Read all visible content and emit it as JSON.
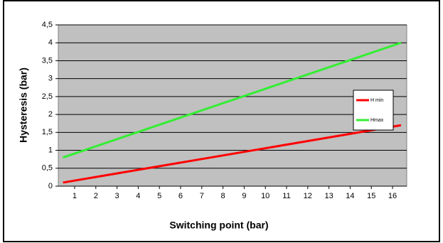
{
  "chart_data": {
    "type": "line",
    "y_label": "Hysteresis (bar)",
    "x_label": "Switching point  (bar)",
    "x": [
      0.45,
      16.4
    ],
    "series": [
      {
        "name": "H min",
        "color": "#ff0000",
        "values": [
          0.1,
          1.7
        ]
      },
      {
        "name": "Hmax",
        "color": "#33ee33",
        "values": [
          0.8,
          4.0
        ]
      }
    ],
    "xlim": [
      0.23,
      16.67
    ],
    "xticks": [
      1,
      2,
      3,
      4,
      5,
      6,
      7,
      8,
      9,
      10,
      11,
      12,
      13,
      14,
      15,
      16
    ],
    "ylim": [
      0,
      4.5
    ],
    "yticks": [
      0,
      {
        "value": 0.5,
        "label": "0,5"
      },
      1,
      {
        "value": 1.5,
        "label": "1,5"
      },
      2,
      {
        "value": 2.5,
        "label": "2,5"
      },
      3,
      {
        "value": 3.5,
        "label": "3,5"
      },
      4,
      {
        "value": 4.5,
        "label": "4,5"
      }
    ],
    "grid": true,
    "legend": "right"
  }
}
